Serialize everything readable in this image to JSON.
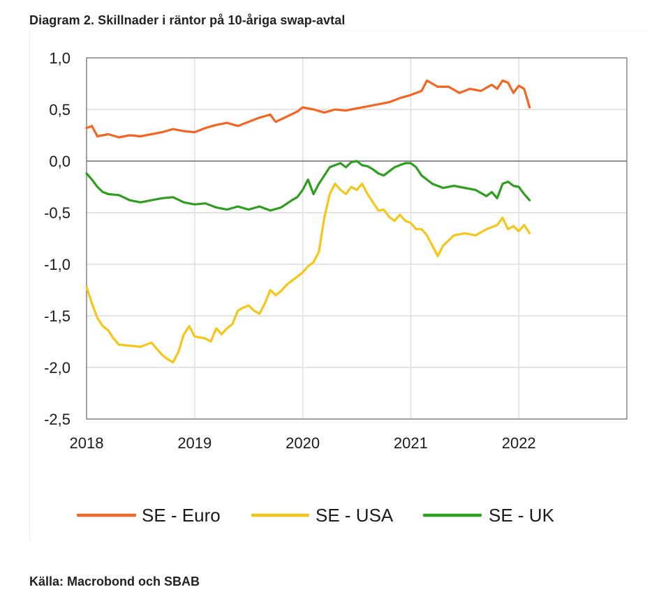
{
  "page": {
    "title": "Diagram 2. Skillnader i räntor på 10-åriga swap-avtal",
    "source": "Källa: Macrobond och SBAB"
  },
  "chart_data": {
    "type": "line",
    "title": "Diagram 2. Skillnader i räntor på 10-åriga swap-avtal",
    "xlabel": "",
    "ylabel": "",
    "xlim": [
      2018.0,
      2023.0
    ],
    "ylim": [
      -2.5,
      1.0
    ],
    "y_ticks": [
      1.0,
      0.5,
      0.0,
      -0.5,
      -1.0,
      -1.5,
      -2.0,
      -2.5
    ],
    "y_tick_labels": [
      "1,0",
      "0,5",
      "0,0",
      "-0,5",
      "-1,0",
      "-1,5",
      "-2,0",
      "-2,5"
    ],
    "x_ticks": [
      2018,
      2019,
      2020,
      2021,
      2022
    ],
    "x_tick_labels": [
      "2018",
      "2019",
      "2020",
      "2021",
      "2022"
    ],
    "grid": true,
    "legend_position": "bottom",
    "series": [
      {
        "name": "SE - Euro",
        "color": "#f26522",
        "x": [
          2018.0,
          2018.05,
          2018.1,
          2018.2,
          2018.3,
          2018.4,
          2018.5,
          2018.6,
          2018.7,
          2018.8,
          2018.9,
          2019.0,
          2019.1,
          2019.2,
          2019.3,
          2019.4,
          2019.5,
          2019.6,
          2019.7,
          2019.75,
          2019.85,
          2019.95,
          2020.0,
          2020.1,
          2020.2,
          2020.3,
          2020.4,
          2020.5,
          2020.6,
          2020.7,
          2020.8,
          2020.9,
          2021.0,
          2021.1,
          2021.15,
          2021.25,
          2021.35,
          2021.45,
          2021.55,
          2021.65,
          2021.75,
          2021.8,
          2021.85,
          2021.9,
          2021.95,
          2022.0,
          2022.05,
          2022.1
        ],
        "y": [
          0.32,
          0.34,
          0.24,
          0.26,
          0.23,
          0.25,
          0.24,
          0.26,
          0.28,
          0.31,
          0.29,
          0.28,
          0.32,
          0.35,
          0.37,
          0.34,
          0.38,
          0.42,
          0.45,
          0.38,
          0.43,
          0.48,
          0.52,
          0.5,
          0.47,
          0.5,
          0.49,
          0.51,
          0.53,
          0.55,
          0.57,
          0.61,
          0.64,
          0.68,
          0.78,
          0.72,
          0.72,
          0.66,
          0.7,
          0.68,
          0.74,
          0.7,
          0.78,
          0.76,
          0.66,
          0.73,
          0.7,
          0.52
        ]
      },
      {
        "name": "SE - USA",
        "color": "#f5c518",
        "x": [
          2018.0,
          2018.05,
          2018.1,
          2018.15,
          2018.2,
          2018.25,
          2018.3,
          2018.4,
          2018.5,
          2018.6,
          2018.7,
          2018.75,
          2018.8,
          2018.85,
          2018.9,
          2018.95,
          2019.0,
          2019.1,
          2019.15,
          2019.2,
          2019.25,
          2019.3,
          2019.35,
          2019.4,
          2019.45,
          2019.5,
          2019.55,
          2019.6,
          2019.65,
          2019.7,
          2019.75,
          2019.8,
          2019.85,
          2019.9,
          2019.95,
          2020.0,
          2020.05,
          2020.1,
          2020.15,
          2020.2,
          2020.25,
          2020.3,
          2020.35,
          2020.4,
          2020.45,
          2020.5,
          2020.55,
          2020.6,
          2020.65,
          2020.7,
          2020.75,
          2020.8,
          2020.85,
          2020.9,
          2020.95,
          2021.0,
          2021.05,
          2021.1,
          2021.15,
          2021.2,
          2021.25,
          2021.3,
          2021.4,
          2021.5,
          2021.6,
          2021.7,
          2021.75,
          2021.8,
          2021.85,
          2021.9,
          2021.95,
          2022.0,
          2022.05,
          2022.1
        ],
        "y": [
          -1.22,
          -1.38,
          -1.52,
          -1.6,
          -1.64,
          -1.72,
          -1.78,
          -1.79,
          -1.8,
          -1.76,
          -1.88,
          -1.92,
          -1.95,
          -1.85,
          -1.68,
          -1.6,
          -1.7,
          -1.72,
          -1.75,
          -1.62,
          -1.68,
          -1.62,
          -1.58,
          -1.45,
          -1.42,
          -1.4,
          -1.45,
          -1.48,
          -1.38,
          -1.25,
          -1.3,
          -1.26,
          -1.2,
          -1.16,
          -1.12,
          -1.08,
          -1.02,
          -0.98,
          -0.88,
          -0.55,
          -0.32,
          -0.22,
          -0.28,
          -0.32,
          -0.25,
          -0.28,
          -0.22,
          -0.32,
          -0.4,
          -0.48,
          -0.47,
          -0.54,
          -0.58,
          -0.52,
          -0.58,
          -0.6,
          -0.66,
          -0.66,
          -0.72,
          -0.82,
          -0.92,
          -0.82,
          -0.72,
          -0.7,
          -0.72,
          -0.66,
          -0.64,
          -0.62,
          -0.55,
          -0.66,
          -0.63,
          -0.68,
          -0.62,
          -0.7
        ]
      },
      {
        "name": "SE - UK",
        "color": "#2e9e1f",
        "x": [
          2018.0,
          2018.05,
          2018.1,
          2018.15,
          2018.2,
          2018.3,
          2018.4,
          2018.5,
          2018.6,
          2018.7,
          2018.8,
          2018.9,
          2019.0,
          2019.1,
          2019.2,
          2019.3,
          2019.4,
          2019.5,
          2019.6,
          2019.7,
          2019.8,
          2019.9,
          2019.95,
          2020.0,
          2020.05,
          2020.1,
          2020.15,
          2020.2,
          2020.25,
          2020.3,
          2020.35,
          2020.4,
          2020.45,
          2020.5,
          2020.55,
          2020.6,
          2020.65,
          2020.7,
          2020.75,
          2020.8,
          2020.85,
          2020.9,
          2020.95,
          2021.0,
          2021.05,
          2021.1,
          2021.15,
          2021.2,
          2021.3,
          2021.4,
          2021.5,
          2021.6,
          2021.7,
          2021.75,
          2021.8,
          2021.85,
          2021.9,
          2021.95,
          2022.0,
          2022.05,
          2022.1
        ],
        "y": [
          -0.12,
          -0.18,
          -0.25,
          -0.3,
          -0.32,
          -0.33,
          -0.38,
          -0.4,
          -0.38,
          -0.36,
          -0.35,
          -0.4,
          -0.42,
          -0.41,
          -0.45,
          -0.47,
          -0.44,
          -0.47,
          -0.44,
          -0.48,
          -0.45,
          -0.38,
          -0.35,
          -0.28,
          -0.18,
          -0.32,
          -0.22,
          -0.14,
          -0.06,
          -0.04,
          -0.02,
          -0.06,
          -0.01,
          0.0,
          -0.04,
          -0.05,
          -0.08,
          -0.12,
          -0.14,
          -0.1,
          -0.06,
          -0.04,
          -0.02,
          -0.02,
          -0.06,
          -0.14,
          -0.18,
          -0.22,
          -0.26,
          -0.24,
          -0.26,
          -0.28,
          -0.34,
          -0.3,
          -0.36,
          -0.22,
          -0.2,
          -0.24,
          -0.25,
          -0.32,
          -0.38
        ]
      }
    ]
  }
}
